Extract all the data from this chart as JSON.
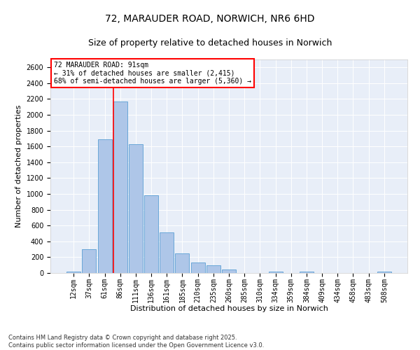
{
  "title1": "72, MARAUDER ROAD, NORWICH, NR6 6HD",
  "title2": "Size of property relative to detached houses in Norwich",
  "xlabel": "Distribution of detached houses by size in Norwich",
  "ylabel": "Number of detached properties",
  "categories": [
    "12sqm",
    "37sqm",
    "61sqm",
    "86sqm",
    "111sqm",
    "136sqm",
    "161sqm",
    "185sqm",
    "210sqm",
    "235sqm",
    "260sqm",
    "285sqm",
    "310sqm",
    "334sqm",
    "359sqm",
    "384sqm",
    "409sqm",
    "434sqm",
    "458sqm",
    "483sqm",
    "508sqm"
  ],
  "values": [
    20,
    300,
    1690,
    2170,
    1630,
    980,
    515,
    245,
    130,
    95,
    40,
    0,
    0,
    20,
    0,
    20,
    0,
    0,
    0,
    0,
    15
  ],
  "bar_color": "#aec6e8",
  "bar_edge_color": "#5a9fd4",
  "vline_color": "red",
  "vline_x_index": 3,
  "annotation_title": "72 MARAUDER ROAD: 91sqm",
  "annotation_line1": "← 31% of detached houses are smaller (2,415)",
  "annotation_line2": "68% of semi-detached houses are larger (5,360) →",
  "annotation_box_color": "red",
  "ylim": [
    0,
    2700
  ],
  "yticks": [
    0,
    200,
    400,
    600,
    800,
    1000,
    1200,
    1400,
    1600,
    1800,
    2000,
    2200,
    2400,
    2600
  ],
  "background_color": "#e8eef8",
  "footer1": "Contains HM Land Registry data © Crown copyright and database right 2025.",
  "footer2": "Contains public sector information licensed under the Open Government Licence v3.0.",
  "title_fontsize": 10,
  "subtitle_fontsize": 9,
  "axis_label_fontsize": 8,
  "tick_fontsize": 7,
  "annotation_fontsize": 7,
  "footer_fontsize": 6
}
